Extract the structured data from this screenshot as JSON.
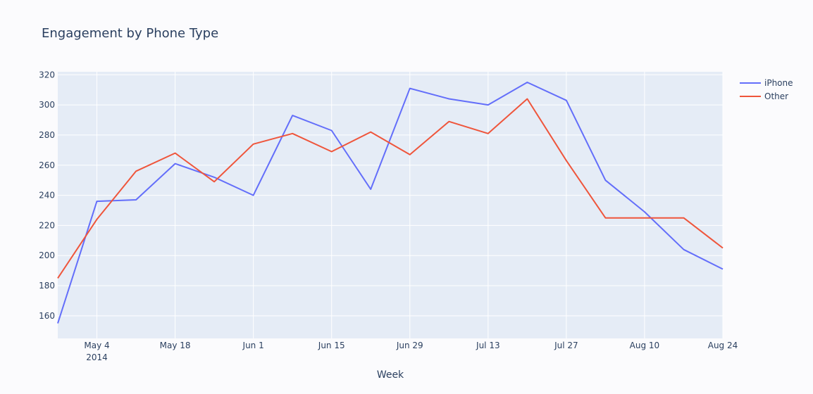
{
  "chart_data": {
    "type": "line",
    "title": "Engagement by Phone Type",
    "xlabel": "Week",
    "ylabel": "",
    "x": [
      "2014-04-27",
      "2014-05-04",
      "2014-05-11",
      "2014-05-18",
      "2014-05-25",
      "2014-06-01",
      "2014-06-08",
      "2014-06-15",
      "2014-06-22",
      "2014-06-29",
      "2014-07-06",
      "2014-07-13",
      "2014-07-20",
      "2014-07-27",
      "2014-08-03",
      "2014-08-10",
      "2014-08-17",
      "2014-08-24"
    ],
    "xlim": [
      "2014-04-27",
      "2014-08-24"
    ],
    "ylim": [
      145,
      322
    ],
    "x_ticks": [
      {
        "date": "2014-05-04",
        "label": "May 4",
        "sublabel": "2014"
      },
      {
        "date": "2014-05-18",
        "label": "May 18"
      },
      {
        "date": "2014-06-01",
        "label": "Jun 1"
      },
      {
        "date": "2014-06-15",
        "label": "Jun 15"
      },
      {
        "date": "2014-06-29",
        "label": "Jun 29"
      },
      {
        "date": "2014-07-13",
        "label": "Jul 13"
      },
      {
        "date": "2014-07-27",
        "label": "Jul 27"
      },
      {
        "date": "2014-08-10",
        "label": "Aug 10"
      },
      {
        "date": "2014-08-24",
        "label": "Aug 24"
      }
    ],
    "y_ticks": [
      160,
      180,
      200,
      220,
      240,
      260,
      280,
      300,
      320
    ],
    "grid": true,
    "legend_position": "top-right",
    "series": [
      {
        "name": "iPhone",
        "color": "#636efa",
        "values": [
          155,
          236,
          237,
          261,
          252,
          240,
          293,
          283,
          244,
          311,
          304,
          300,
          315,
          303,
          250,
          229,
          204,
          191
        ]
      },
      {
        "name": "Other",
        "color": "#ef553b",
        "values": [
          185,
          224,
          256,
          268,
          249,
          274,
          281,
          269,
          282,
          267,
          289,
          281,
          304,
          263,
          225,
          225,
          225,
          205
        ]
      }
    ]
  },
  "colors": {
    "plot_background": "#e5ecf6",
    "grid": "#ffffff",
    "text": "#2a3f5f"
  }
}
